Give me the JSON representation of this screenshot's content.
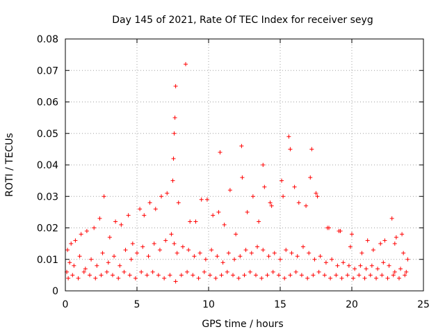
{
  "chart_data": {
    "type": "scatter",
    "title": "Day 145 of 2021, Rate Of TEC Index for receiver seyg",
    "xlabel": "GPS time / hours",
    "ylabel": "ROTI / TECUs",
    "xlim": [
      0,
      25
    ],
    "ylim": [
      0,
      0.08
    ],
    "x_ticks": [
      "0",
      "5",
      "10",
      "15",
      "20",
      "25"
    ],
    "y_ticks": [
      "0",
      "0.01",
      "0.02",
      "0.03",
      "0.04",
      "0.05",
      "0.06",
      "0.07",
      "0.08"
    ],
    "grid": true,
    "marker": "plus",
    "marker_color": "#ff0000",
    "series": [
      {
        "x": [
          0.1,
          0.3,
          0.6,
          1.0,
          1.4,
          1.8,
          2.2,
          2.6,
          3.0,
          3.4,
          3.8,
          4.2,
          4.6,
          5.0,
          5.4,
          5.8,
          6.2,
          6.6,
          7.0,
          7.4,
          7.6,
          7.8,
          8.2,
          8.6,
          9.0,
          9.4,
          9.8,
          10.2,
          10.6,
          11.0,
          11.4,
          11.8,
          12.2,
          12.6,
          13.0,
          13.4,
          13.8,
          14.2,
          14.6,
          15.0,
          15.4,
          15.8,
          16.2,
          16.6,
          17.0,
          17.4,
          17.8,
          18.2,
          18.6,
          19.0,
          19.4,
          19.8,
          20.2,
          20.6,
          21.0,
          21.4,
          21.8,
          22.2,
          22.6,
          23.0,
          23.4,
          23.8,
          0.2,
          0.5,
          0.9,
          1.3,
          1.7,
          2.1,
          2.5,
          2.9,
          3.3,
          3.7,
          4.1,
          4.5,
          4.9,
          5.3,
          5.7,
          6.1,
          6.5,
          6.9,
          7.3,
          7.7,
          8.1,
          8.5,
          8.9,
          9.3,
          9.7,
          10.1,
          10.5,
          10.9,
          11.3,
          11.7,
          12.1,
          12.5,
          12.9,
          13.3,
          13.7,
          14.1,
          14.5,
          14.9,
          15.3,
          15.7,
          16.1,
          16.5,
          16.9,
          17.3,
          17.7,
          18.1,
          18.5,
          18.9,
          19.3,
          19.7,
          20.1,
          20.5,
          20.9,
          21.3,
          21.7,
          22.1,
          22.5,
          22.9,
          23.3,
          23.7,
          0.4,
          1.1,
          2.0,
          2.7,
          3.5,
          4.4,
          5.2,
          5.9,
          6.7,
          7.5,
          7.55,
          7.6,
          7.65,
          7.7,
          8.4,
          9.1,
          9.9,
          10.7,
          10.8,
          11.5,
          12.3,
          12.35,
          13.1,
          13.8,
          13.9,
          14.4,
          15.1,
          15.6,
          15.7,
          16.3,
          17.1,
          17.2,
          17.6,
          18.3,
          19.2,
          20.0,
          21.1,
          22.0,
          22.8,
          23.1,
          23.5,
          0.15,
          0.7,
          1.5,
          2.4,
          3.1,
          3.9,
          4.7,
          5.5,
          6.3,
          7.1,
          7.9,
          8.7,
          9.5,
          10.3,
          11.1,
          11.9,
          12.7,
          13.5,
          14.3,
          15.2,
          16.0,
          16.8,
          17.5,
          18.4,
          19.1,
          19.9,
          20.7,
          21.5,
          22.3,
          23.0,
          23.6,
          23.9
        ],
        "y": [
          0.006,
          0.009,
          0.008,
          0.011,
          0.007,
          0.01,
          0.008,
          0.012,
          0.009,
          0.011,
          0.008,
          0.013,
          0.01,
          0.012,
          0.014,
          0.011,
          0.015,
          0.013,
          0.016,
          0.018,
          0.015,
          0.012,
          0.014,
          0.013,
          0.011,
          0.012,
          0.01,
          0.013,
          0.011,
          0.009,
          0.012,
          0.01,
          0.011,
          0.013,
          0.012,
          0.014,
          0.013,
          0.011,
          0.012,
          0.01,
          0.013,
          0.012,
          0.011,
          0.014,
          0.012,
          0.01,
          0.011,
          0.009,
          0.01,
          0.008,
          0.009,
          0.008,
          0.007,
          0.008,
          0.007,
          0.008,
          0.007,
          0.009,
          0.008,
          0.006,
          0.007,
          0.006,
          0.004,
          0.005,
          0.004,
          0.006,
          0.005,
          0.004,
          0.005,
          0.006,
          0.005,
          0.004,
          0.006,
          0.005,
          0.004,
          0.006,
          0.005,
          0.006,
          0.005,
          0.004,
          0.005,
          0.003,
          0.005,
          0.006,
          0.005,
          0.004,
          0.006,
          0.005,
          0.004,
          0.005,
          0.006,
          0.005,
          0.004,
          0.005,
          0.006,
          0.005,
          0.004,
          0.005,
          0.006,
          0.005,
          0.004,
          0.005,
          0.006,
          0.005,
          0.004,
          0.005,
          0.006,
          0.005,
          0.004,
          0.005,
          0.004,
          0.005,
          0.004,
          0.005,
          0.004,
          0.005,
          0.004,
          0.005,
          0.004,
          0.005,
          0.004,
          0.005,
          0.015,
          0.018,
          0.02,
          0.03,
          0.022,
          0.024,
          0.026,
          0.028,
          0.03,
          0.035,
          0.042,
          0.05,
          0.055,
          0.065,
          0.072,
          0.022,
          0.029,
          0.025,
          0.044,
          0.032,
          0.046,
          0.036,
          0.03,
          0.04,
          0.033,
          0.027,
          0.035,
          0.049,
          0.045,
          0.028,
          0.036,
          0.045,
          0.03,
          0.02,
          0.019,
          0.018,
          0.016,
          0.015,
          0.023,
          0.017,
          0.018,
          0.013,
          0.016,
          0.019,
          0.023,
          0.017,
          0.021,
          0.015,
          0.024,
          0.026,
          0.031,
          0.028,
          0.022,
          0.029,
          0.024,
          0.021,
          0.018,
          0.025,
          0.022,
          0.028,
          0.03,
          0.033,
          0.027,
          0.031,
          0.02,
          0.019,
          0.014,
          0.012,
          0.013,
          0.016,
          0.015,
          0.012,
          0.01
        ]
      }
    ]
  }
}
